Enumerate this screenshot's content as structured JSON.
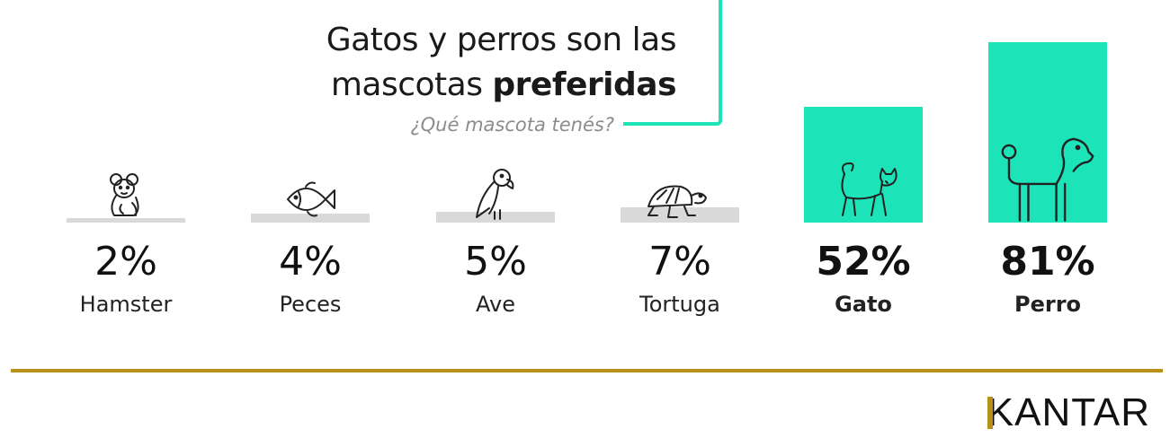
{
  "title": {
    "line1": "Gatos y perros son las",
    "line2_prefix": "mascotas ",
    "line2_bold": "preferidas"
  },
  "subtitle": "¿Qué mascota tenés?",
  "colors": {
    "accent": "#1de3b9",
    "gray_bar": "#d9d9d9",
    "gold": "#b99119",
    "text": "#1a1a1a"
  },
  "brand": {
    "logo": "KANTAR"
  },
  "chart_data": {
    "type": "bar",
    "title": "Gatos y perros son las mascotas preferidas",
    "subtitle": "¿Qué mascota tenés?",
    "categories": [
      "Hamster",
      "Peces",
      "Ave",
      "Tortuga",
      "Gato",
      "Perro"
    ],
    "values": [
      2,
      4,
      5,
      7,
      52,
      81
    ],
    "value_labels": [
      "2%",
      "4%",
      "5%",
      "7%",
      "52%",
      "81%"
    ],
    "highlighted": [
      "Gato",
      "Perro"
    ],
    "icons": [
      "hamster-icon",
      "fish-icon",
      "parrot-icon",
      "turtle-icon",
      "cat-icon",
      "dog-icon"
    ],
    "unit": "%",
    "ylim": [
      0,
      100
    ],
    "xlabel": "",
    "ylabel": "",
    "grid": false,
    "legend": "none"
  }
}
